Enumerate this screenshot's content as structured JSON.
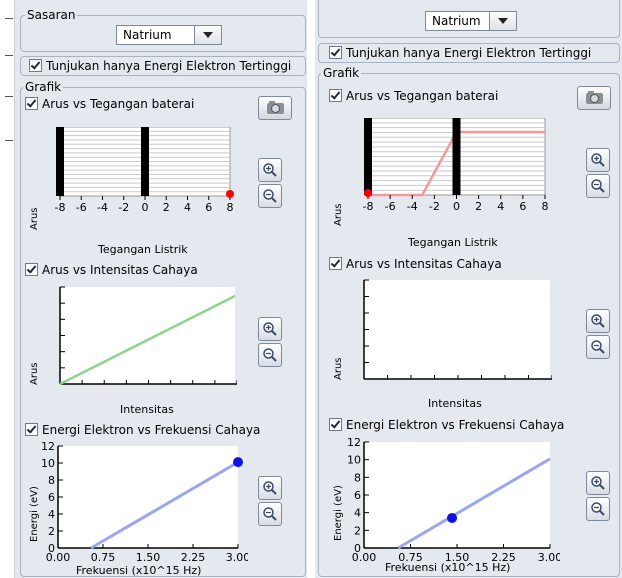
{
  "panels": [
    {
      "sasaran_label": "Sasaran",
      "target": "Natrium",
      "only_highest": "Tunjukan hanya Energi Elektron Tertinggi",
      "grafik_label": "Grafik",
      "chart1_title": "Arus vs Tegangan baterai",
      "chart1_xlabel": "Tegangan Listrik",
      "chart1_ylabel": "Arus",
      "chart2_title": "Arus vs Intensitas Cahaya",
      "chart2_xlabel": "Intensitas",
      "chart2_ylabel": "Arus",
      "chart3_title": "Energi Elektron vs Frekuensi Cahaya",
      "chart3_xlabel": "Frekuensi (x10^15 Hz)",
      "chart3_ylabel": "Energi (eV)"
    },
    {
      "target": "Natrium",
      "only_highest": "Tunjukan hanya Energi Elektron Tertinggi",
      "grafik_label": "Grafik",
      "chart1_title": "Arus vs Tegangan baterai",
      "chart1_xlabel": "Tegangan Listrik",
      "chart1_ylabel": "Arus",
      "chart2_title": "Arus vs Intensitas Cahaya",
      "chart2_xlabel": "Intensitas",
      "chart2_ylabel": "Arus",
      "chart3_title": "Energi Elektron vs Frekuensi Cahaya",
      "chart3_xlabel": "Frekuensi (x10^15 Hz)",
      "chart3_ylabel": "Energi (eV)"
    }
  ],
  "chart_data": [
    {
      "panel": "left",
      "type": "line",
      "title": "Arus vs Tegangan baterai",
      "xlabel": "Tegangan Listrik",
      "ylabel": "Arus",
      "xticks": [
        "-8",
        "-6",
        "-4",
        "-2",
        "0",
        "2",
        "4",
        "6",
        "8"
      ],
      "xlim": [
        -8,
        8
      ],
      "series": [],
      "marker": {
        "x": 8,
        "y": 0,
        "color": "#ff0000"
      }
    },
    {
      "panel": "left",
      "type": "line",
      "title": "Arus vs Intensitas Cahaya",
      "xlabel": "Intensitas",
      "ylabel": "Arus",
      "series": [
        {
          "x": [
            0,
            1
          ],
          "y": [
            0,
            1
          ],
          "color": "#8fd48f"
        }
      ]
    },
    {
      "panel": "left",
      "type": "line",
      "title": "Energi Elektron vs Frekuensi Cahaya",
      "xlabel": "Frekuensi (x10^15 Hz)",
      "ylabel": "Energi (eV)",
      "xticks": [
        "0.00",
        "0.75",
        "1.50",
        "2.25",
        "3.00"
      ],
      "yticks": [
        "0",
        "2",
        "4",
        "6",
        "8",
        "10",
        "12"
      ],
      "xlim": [
        0,
        3
      ],
      "ylim": [
        0,
        12
      ],
      "series": [
        {
          "x": [
            0.55,
            3.0
          ],
          "y": [
            0,
            10.1
          ],
          "color": "#9aa6f0"
        }
      ],
      "marker": {
        "x": 3.0,
        "y": 10.1,
        "color": "#1010e0"
      }
    },
    {
      "panel": "right",
      "type": "line",
      "title": "Arus vs Tegangan baterai",
      "xlabel": "Tegangan Listrik",
      "ylabel": "Arus",
      "xticks": [
        "-8",
        "-6",
        "-4",
        "-2",
        "0",
        "2",
        "4",
        "6",
        "8"
      ],
      "xlim": [
        -8,
        8
      ],
      "ylim": [
        0,
        1
      ],
      "series": [
        {
          "x": [
            -8,
            -3.1,
            0,
            8
          ],
          "y": [
            0,
            0,
            1,
            1
          ],
          "color": "#f29a9a"
        }
      ],
      "marker": {
        "x": -8,
        "y": 0,
        "color": "#ff0000"
      }
    },
    {
      "panel": "right",
      "type": "line",
      "title": "Arus vs Intensitas Cahaya",
      "xlabel": "Intensitas",
      "ylabel": "Arus",
      "series": []
    },
    {
      "panel": "right",
      "type": "line",
      "title": "Energi Elektron vs Frekuensi Cahaya",
      "xlabel": "Frekuensi (x10^15 Hz)",
      "ylabel": "Energi (eV)",
      "xticks": [
        "0.00",
        "0.75",
        "1.50",
        "2.25",
        "3.00"
      ],
      "yticks": [
        "0",
        "2",
        "4",
        "6",
        "8",
        "10",
        "12"
      ],
      "xlim": [
        0,
        3
      ],
      "ylim": [
        0,
        12
      ],
      "series": [
        {
          "x": [
            0.55,
            3.0
          ],
          "y": [
            0,
            10.1
          ],
          "color": "#9aa6f0"
        }
      ],
      "marker": {
        "x": 1.42,
        "y": 3.4,
        "color": "#1010e0"
      }
    }
  ]
}
